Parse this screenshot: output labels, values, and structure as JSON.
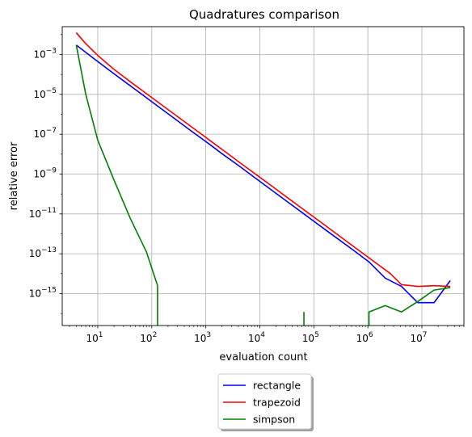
{
  "chart_data": {
    "type": "line",
    "title": "Quadratures comparison",
    "xlabel": "evaluation count",
    "ylabel": "relative error",
    "xscale": "log",
    "yscale": "log",
    "xlim": [
      2.2,
      60000000
    ],
    "ylim": [
      2.5e-17,
      0.025
    ],
    "grid": true,
    "legend_position": "below",
    "x_ticks": [
      {
        "base": "10",
        "exp": "1",
        "value": 10
      },
      {
        "base": "10",
        "exp": "2",
        "value": 100
      },
      {
        "base": "10",
        "exp": "3",
        "value": 1000
      },
      {
        "base": "10",
        "exp": "4",
        "value": 10000
      },
      {
        "base": "10",
        "exp": "5",
        "value": 100000
      },
      {
        "base": "10",
        "exp": "6",
        "value": 1000000
      },
      {
        "base": "10",
        "exp": "7",
        "value": 10000000
      }
    ],
    "y_ticks": [
      {
        "base": "10",
        "exp": "−15",
        "value": 1e-15
      },
      {
        "base": "10",
        "exp": "−13",
        "value": 1e-13
      },
      {
        "base": "10",
        "exp": "−11",
        "value": 1e-11
      },
      {
        "base": "10",
        "exp": "−9",
        "value": 1e-09
      },
      {
        "base": "10",
        "exp": "−7",
        "value": 1e-07
      },
      {
        "base": "10",
        "exp": "−5",
        "value": 1e-05
      },
      {
        "base": "10",
        "exp": "−3",
        "value": 0.001
      }
    ],
    "series": [
      {
        "name": "rectangle",
        "color": "#0000ff",
        "points": [
          [
            4,
            0.003
          ],
          [
            8,
            0.0007
          ],
          [
            16,
            0.00017
          ],
          [
            32,
            4.2e-05
          ],
          [
            64,
            1.05e-05
          ],
          [
            128,
            2.6e-06
          ],
          [
            256,
            6.5e-07
          ],
          [
            512,
            1.6e-07
          ],
          [
            1024,
            4.1e-08
          ],
          [
            2048,
            1e-08
          ],
          [
            4096,
            2.6e-09
          ],
          [
            8192,
            6.4e-10
          ],
          [
            16384,
            1.6e-10
          ],
          [
            32768,
            4e-11
          ],
          [
            65536,
            1e-11
          ],
          [
            131072,
            2.5e-12
          ],
          [
            262144,
            6.3e-13
          ],
          [
            524288,
            1.6e-13
          ],
          [
            1048576,
            3.9e-14
          ],
          [
            2097152,
            6e-15
          ],
          [
            4194304,
            2.3e-15
          ],
          [
            8388608,
            3.5e-16
          ],
          [
            16777216,
            3.5e-16
          ],
          [
            33554432,
            4.5e-15
          ]
        ]
      },
      {
        "name": "trapezoid",
        "color": "#ff0000",
        "points": [
          [
            4,
            0.0125
          ],
          [
            6,
            0.0035
          ],
          [
            10,
            0.0009
          ],
          [
            20,
            0.00018
          ],
          [
            40,
            4.3e-05
          ],
          [
            80,
            1.08e-05
          ],
          [
            160,
            2.7e-06
          ],
          [
            320,
            6.7e-07
          ],
          [
            640,
            1.7e-07
          ],
          [
            1280,
            4.2e-08
          ],
          [
            2560,
            1.05e-08
          ],
          [
            5120,
            2.6e-09
          ],
          [
            10240,
            6.6e-10
          ],
          [
            20480,
            1.65e-10
          ],
          [
            40960,
            4.1e-11
          ],
          [
            81920,
            1.03e-11
          ],
          [
            163840,
            2.6e-12
          ],
          [
            327680,
            6.4e-13
          ],
          [
            655360,
            1.6e-13
          ],
          [
            1310720,
            4e-14
          ],
          [
            2621440,
            1e-14
          ],
          [
            4194304,
            2.8e-15
          ],
          [
            8388608,
            2.3e-15
          ],
          [
            16777216,
            2.5e-15
          ],
          [
            33554432,
            2.3e-15
          ]
        ]
      },
      {
        "name": "simpson",
        "color": "#008000",
        "segments": [
          [
            [
              4,
              0.003
            ],
            [
              6,
              1e-05
            ],
            [
              10,
              5e-08
            ],
            [
              20,
              5e-10
            ],
            [
              40,
              6e-12
            ],
            [
              80,
              1.2e-13
            ],
            [
              128,
              2.5e-15
            ],
            [
              128,
              2.5e-17
            ]
          ],
          [
            [
              65536,
              2.5e-17
            ],
            [
              65536,
              1.2e-16
            ]
          ],
          [
            [
              1048576,
              2.5e-17
            ],
            [
              1048576,
              1.2e-16
            ],
            [
              2097152,
              2.5e-16
            ],
            [
              4194304,
              1.2e-16
            ],
            [
              8388608,
              4e-16
            ],
            [
              16777216,
              1.5e-15
            ],
            [
              33554432,
              2e-15
            ]
          ]
        ]
      }
    ]
  }
}
